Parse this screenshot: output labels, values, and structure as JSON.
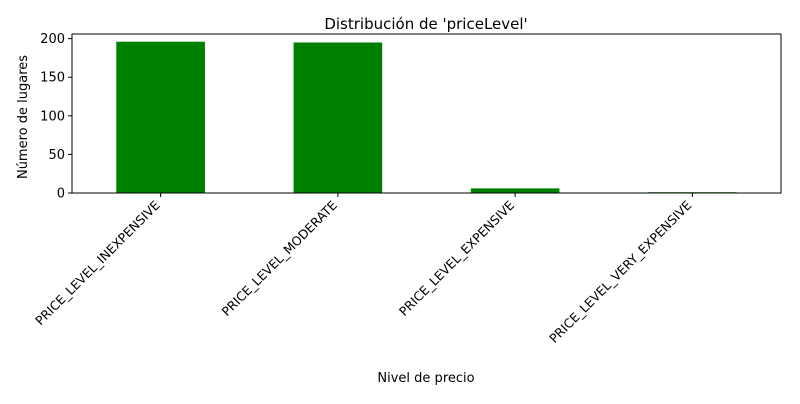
{
  "chart_data": {
    "type": "bar",
    "title": "Distribución de 'priceLevel'",
    "xlabel": "Nivel de precio",
    "ylabel": "Número de lugares",
    "categories": [
      "PRICE_LEVEL_INEXPENSIVE",
      "PRICE_LEVEL_MODERATE",
      "PRICE_LEVEL_EXPENSIVE",
      "PRICE_LEVEL_VERY_EXPENSIVE"
    ],
    "values": [
      196,
      195,
      6,
      1
    ],
    "ylim": [
      0,
      206
    ],
    "yticks": [
      0,
      50,
      100,
      150,
      200
    ],
    "grid": false,
    "bar_color": "#008000"
  }
}
